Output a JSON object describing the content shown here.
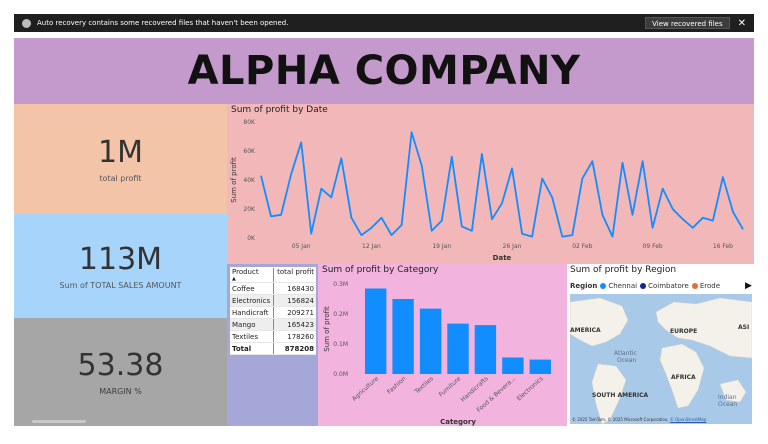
{
  "notification": {
    "message": "Auto recovery contains some recovered files that haven't been opened.",
    "button_label": "View recovered files",
    "close_glyph": "✕"
  },
  "header": {
    "title": "ALPHA COMPANY"
  },
  "kpis": [
    {
      "value": "1M",
      "label": "total profit"
    },
    {
      "value": "113M",
      "label": "Sum of TOTAL SALES AMOUNT"
    },
    {
      "value": "53.38",
      "label": "MARGIN %"
    }
  ],
  "profit_table": {
    "headers": [
      "Product",
      "total profit"
    ],
    "rows": [
      {
        "product": "Coffee",
        "profit": "168430"
      },
      {
        "product": "Electronics",
        "profit": "156824"
      },
      {
        "product": "Handicraft",
        "profit": "209271"
      },
      {
        "product": "Mango",
        "profit": "165423"
      },
      {
        "product": "Textiles",
        "profit": "178260"
      }
    ],
    "total_label": "Total",
    "total_value": "878208"
  },
  "map": {
    "title": "Sum of profit by Region",
    "legend_title": "Region",
    "legend": [
      {
        "name": "Chennai",
        "color": "#118dff"
      },
      {
        "name": "Coimbatore",
        "color": "#12239e"
      },
      {
        "name": "Erode",
        "color": "#e66c37"
      }
    ],
    "labels": {
      "america": "AMERICA",
      "europe": "EUROPE",
      "asia": "ASI",
      "atlantic": "Atlantic",
      "ocean": "Ocean",
      "africa": "AFRICA",
      "south_america": "SOUTH AMERICA",
      "indian": "Indian",
      "indian_ocean": "Ocean"
    },
    "attribution": "© 2025 TomTom, © 2025 Microsoft Corporation,",
    "attribution_link": "© OpenStreetMap"
  },
  "chart_data": [
    {
      "type": "line",
      "title": "Sum of profit by Date",
      "xlabel": "Date",
      "ylabel": "Sum of profit",
      "ylim": [
        0,
        80000
      ],
      "yticks": [
        0,
        20000,
        40000,
        60000,
        80000
      ],
      "ytick_labels": [
        "0K",
        "20K",
        "40K",
        "60K",
        "80K"
      ],
      "xticks": [
        "05 Jan",
        "12 Jan",
        "19 Jan",
        "26 Jan",
        "02 Feb",
        "09 Feb",
        "16 Feb"
      ],
      "x_start": "2025-01-01",
      "series_color": "#118dff",
      "values": [
        43000,
        15000,
        16000,
        44000,
        66000,
        3000,
        34000,
        28000,
        55000,
        14000,
        2000,
        7000,
        14000,
        2000,
        9000,
        73000,
        50000,
        5000,
        12000,
        56000,
        8000,
        5000,
        58000,
        13000,
        24000,
        48000,
        3000,
        1000,
        41000,
        28000,
        1000,
        2000,
        41000,
        53000,
        16000,
        1000,
        52000,
        16000,
        53000,
        7000,
        34000,
        20000,
        13000,
        7000,
        14000,
        12000,
        42000,
        18000,
        6000
      ]
    },
    {
      "type": "bar",
      "title": "Sum of profit by Category",
      "xlabel": "Category",
      "ylabel": "Sum of profit",
      "ylim": [
        0,
        300000
      ],
      "yticks": [
        0,
        100000,
        200000,
        300000
      ],
      "ytick_labels": [
        "0.0M",
        "0.1M",
        "0.2M",
        "0.3M"
      ],
      "series_color": "#118dff",
      "categories": [
        "Agriculture",
        "Fashion",
        "Textiles",
        "Furniture",
        "Handicrafts",
        "Food & Bevera...",
        "Electronics"
      ],
      "values": [
        285000,
        250000,
        218000,
        168000,
        163000,
        55000,
        48000
      ]
    }
  ]
}
